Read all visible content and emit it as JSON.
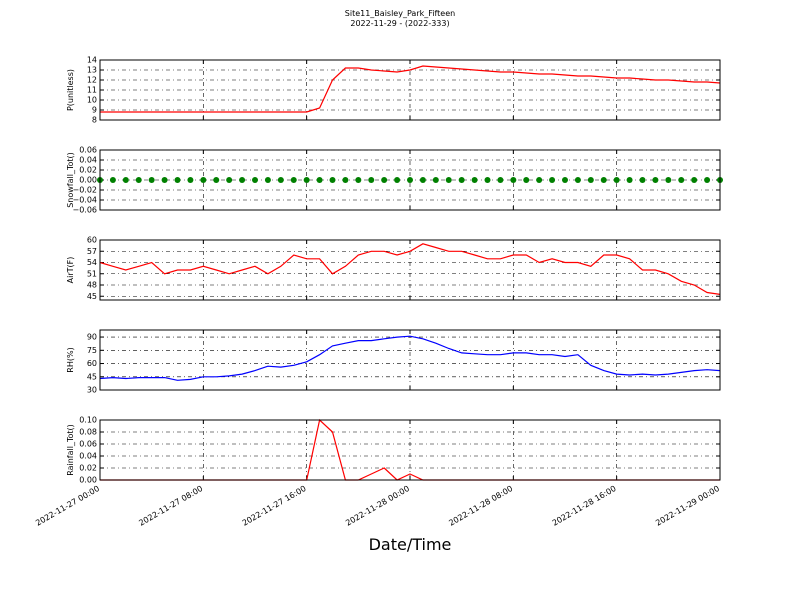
{
  "header": {
    "title": "Site11_Baisley_Park_Fifteen",
    "subtitle": "2022-11-29 - (2022-333)"
  },
  "chart_data": [
    {
      "type": "line",
      "ylabel": "P(unitless)",
      "xlim": [
        "2022-11-27 00:00",
        "2022-11-29 00:00"
      ],
      "xticks": [
        "2022-11-27 00:00",
        "2022-11-27 08:00",
        "2022-11-27 16:00",
        "2022-11-28 00:00",
        "2022-11-28 08:00",
        "2022-11-28 16:00",
        "2022-11-29 00:00"
      ],
      "ylim": [
        8,
        14
      ],
      "yticks": [
        8,
        9,
        10,
        11,
        12,
        13,
        14
      ],
      "grid": true,
      "x": [
        "2022-11-27 00:00",
        "2022-11-27 01:00",
        "2022-11-27 02:00",
        "2022-11-27 03:00",
        "2022-11-27 04:00",
        "2022-11-27 05:00",
        "2022-11-27 06:00",
        "2022-11-27 07:00",
        "2022-11-27 08:00",
        "2022-11-27 09:00",
        "2022-11-27 10:00",
        "2022-11-27 11:00",
        "2022-11-27 12:00",
        "2022-11-27 13:00",
        "2022-11-27 14:00",
        "2022-11-27 15:00",
        "2022-11-27 16:00",
        "2022-11-27 17:00",
        "2022-11-27 18:00",
        "2022-11-27 19:00",
        "2022-11-27 20:00",
        "2022-11-27 21:00",
        "2022-11-27 22:00",
        "2022-11-27 23:00",
        "2022-11-28 00:00",
        "2022-11-28 01:00",
        "2022-11-28 02:00",
        "2022-11-28 03:00",
        "2022-11-28 04:00",
        "2022-11-28 05:00",
        "2022-11-28 06:00",
        "2022-11-28 07:00",
        "2022-11-28 08:00",
        "2022-11-28 09:00",
        "2022-11-28 10:00",
        "2022-11-28 11:00",
        "2022-11-28 12:00",
        "2022-11-28 13:00",
        "2022-11-28 14:00",
        "2022-11-28 15:00",
        "2022-11-28 16:00",
        "2022-11-28 17:00",
        "2022-11-28 18:00",
        "2022-11-28 19:00",
        "2022-11-28 20:00",
        "2022-11-28 21:00",
        "2022-11-28 22:00",
        "2022-11-28 23:00",
        "2022-11-29 00:00"
      ],
      "series": [
        {
          "color": "#ff0000",
          "values": [
            8.8,
            8.8,
            8.8,
            8.8,
            8.8,
            8.8,
            8.8,
            8.8,
            8.8,
            8.8,
            8.8,
            8.8,
            8.8,
            8.8,
            8.8,
            8.8,
            8.8,
            9.2,
            12.0,
            13.2,
            13.2,
            13.0,
            12.9,
            12.8,
            13.0,
            13.4,
            13.3,
            13.2,
            13.1,
            13.0,
            12.9,
            12.8,
            12.8,
            12.7,
            12.6,
            12.6,
            12.5,
            12.4,
            12.4,
            12.3,
            12.2,
            12.2,
            12.1,
            12.0,
            12.0,
            11.9,
            11.8,
            11.8,
            11.7
          ]
        }
      ]
    },
    {
      "type": "scatter",
      "ylabel": "Snowfall_Tot()",
      "xlim": [
        "2022-11-27 00:00",
        "2022-11-29 00:00"
      ],
      "xticks": [
        "2022-11-27 00:00",
        "2022-11-27 08:00",
        "2022-11-27 16:00",
        "2022-11-28 00:00",
        "2022-11-28 08:00",
        "2022-11-28 16:00",
        "2022-11-29 00:00"
      ],
      "ylim": [
        -0.06,
        0.06
      ],
      "yticks": [
        {
          "value": -0.06,
          "label": "−0.06"
        },
        {
          "value": -0.04,
          "label": "−0.04"
        },
        {
          "value": -0.02,
          "label": "−0.02"
        },
        {
          "value": 0,
          "label": "0.00"
        },
        {
          "value": 0.02,
          "label": "0.02"
        },
        {
          "value": 0.04,
          "label": "0.04"
        },
        {
          "value": 0.06,
          "label": "0.06"
        }
      ],
      "grid": true,
      "x": [
        "2022-11-27 00:00",
        "2022-11-27 01:00",
        "2022-11-27 02:00",
        "2022-11-27 03:00",
        "2022-11-27 04:00",
        "2022-11-27 05:00",
        "2022-11-27 06:00",
        "2022-11-27 07:00",
        "2022-11-27 08:00",
        "2022-11-27 09:00",
        "2022-11-27 10:00",
        "2022-11-27 11:00",
        "2022-11-27 12:00",
        "2022-11-27 13:00",
        "2022-11-27 14:00",
        "2022-11-27 15:00",
        "2022-11-27 16:00",
        "2022-11-27 17:00",
        "2022-11-27 18:00",
        "2022-11-27 19:00",
        "2022-11-27 20:00",
        "2022-11-27 21:00",
        "2022-11-27 22:00",
        "2022-11-27 23:00",
        "2022-11-28 00:00",
        "2022-11-28 01:00",
        "2022-11-28 02:00",
        "2022-11-28 03:00",
        "2022-11-28 04:00",
        "2022-11-28 05:00",
        "2022-11-28 06:00",
        "2022-11-28 07:00",
        "2022-11-28 08:00",
        "2022-11-28 09:00",
        "2022-11-28 10:00",
        "2022-11-28 11:00",
        "2022-11-28 12:00",
        "2022-11-28 13:00",
        "2022-11-28 14:00",
        "2022-11-28 15:00",
        "2022-11-28 16:00",
        "2022-11-28 17:00",
        "2022-11-28 18:00",
        "2022-11-28 19:00",
        "2022-11-28 20:00",
        "2022-11-28 21:00",
        "2022-11-28 22:00",
        "2022-11-28 23:00",
        "2022-11-29 00:00"
      ],
      "series": [
        {
          "color": "#008000",
          "values": [
            0,
            0,
            0,
            0,
            0,
            0,
            0,
            0,
            0,
            0,
            0,
            0,
            0,
            0,
            0,
            0,
            0,
            0,
            0,
            0,
            0,
            0,
            0,
            0,
            0,
            0,
            0,
            0,
            0,
            0,
            0,
            0,
            0,
            0,
            0,
            0,
            0,
            0,
            0,
            0,
            0,
            0,
            0,
            0,
            0,
            0,
            0,
            0,
            0
          ]
        }
      ]
    },
    {
      "type": "line",
      "ylabel": "AirT(F)",
      "xlim": [
        "2022-11-27 00:00",
        "2022-11-29 00:00"
      ],
      "xticks": [
        "2022-11-27 00:00",
        "2022-11-27 08:00",
        "2022-11-27 16:00",
        "2022-11-28 00:00",
        "2022-11-28 08:00",
        "2022-11-28 16:00",
        "2022-11-29 00:00"
      ],
      "ylim": [
        44,
        60
      ],
      "yticks": [
        45,
        48,
        51,
        54,
        57,
        60
      ],
      "grid": true,
      "x": [
        "2022-11-27 00:00",
        "2022-11-27 01:00",
        "2022-11-27 02:00",
        "2022-11-27 03:00",
        "2022-11-27 04:00",
        "2022-11-27 05:00",
        "2022-11-27 06:00",
        "2022-11-27 07:00",
        "2022-11-27 08:00",
        "2022-11-27 09:00",
        "2022-11-27 10:00",
        "2022-11-27 11:00",
        "2022-11-27 12:00",
        "2022-11-27 13:00",
        "2022-11-27 14:00",
        "2022-11-27 15:00",
        "2022-11-27 16:00",
        "2022-11-27 17:00",
        "2022-11-27 18:00",
        "2022-11-27 19:00",
        "2022-11-27 20:00",
        "2022-11-27 21:00",
        "2022-11-27 22:00",
        "2022-11-27 23:00",
        "2022-11-28 00:00",
        "2022-11-28 01:00",
        "2022-11-28 02:00",
        "2022-11-28 03:00",
        "2022-11-28 04:00",
        "2022-11-28 05:00",
        "2022-11-28 06:00",
        "2022-11-28 07:00",
        "2022-11-28 08:00",
        "2022-11-28 09:00",
        "2022-11-28 10:00",
        "2022-11-28 11:00",
        "2022-11-28 12:00",
        "2022-11-28 13:00",
        "2022-11-28 14:00",
        "2022-11-28 15:00",
        "2022-11-28 16:00",
        "2022-11-28 17:00",
        "2022-11-28 18:00",
        "2022-11-28 19:00",
        "2022-11-28 20:00",
        "2022-11-28 21:00",
        "2022-11-28 22:00",
        "2022-11-28 23:00",
        "2022-11-29 00:00"
      ],
      "series": [
        {
          "color": "#ff0000",
          "values": [
            54,
            53,
            52,
            53,
            54,
            51,
            52,
            52,
            53,
            52,
            51,
            52,
            53,
            51,
            53,
            56,
            55,
            55,
            51,
            53,
            56,
            57,
            57,
            56,
            57,
            59,
            58,
            57,
            57,
            56,
            55,
            55,
            56,
            56,
            54,
            55,
            54,
            54,
            53,
            56,
            56,
            55,
            52,
            52,
            51,
            49,
            48,
            46,
            45.5
          ]
        }
      ]
    },
    {
      "type": "line",
      "ylabel": "RH(%)",
      "xlim": [
        "2022-11-27 00:00",
        "2022-11-29 00:00"
      ],
      "xticks": [
        "2022-11-27 00:00",
        "2022-11-27 08:00",
        "2022-11-27 16:00",
        "2022-11-28 00:00",
        "2022-11-28 08:00",
        "2022-11-28 16:00",
        "2022-11-29 00:00"
      ],
      "ylim": [
        30,
        98
      ],
      "yticks": [
        30,
        45,
        60,
        75,
        90
      ],
      "grid": true,
      "x": [
        "2022-11-27 00:00",
        "2022-11-27 01:00",
        "2022-11-27 02:00",
        "2022-11-27 03:00",
        "2022-11-27 04:00",
        "2022-11-27 05:00",
        "2022-11-27 06:00",
        "2022-11-27 07:00",
        "2022-11-27 08:00",
        "2022-11-27 09:00",
        "2022-11-27 10:00",
        "2022-11-27 11:00",
        "2022-11-27 12:00",
        "2022-11-27 13:00",
        "2022-11-27 14:00",
        "2022-11-27 15:00",
        "2022-11-27 16:00",
        "2022-11-27 17:00",
        "2022-11-27 18:00",
        "2022-11-27 19:00",
        "2022-11-27 20:00",
        "2022-11-27 21:00",
        "2022-11-27 22:00",
        "2022-11-27 23:00",
        "2022-11-28 00:00",
        "2022-11-28 01:00",
        "2022-11-28 02:00",
        "2022-11-28 03:00",
        "2022-11-28 04:00",
        "2022-11-28 05:00",
        "2022-11-28 06:00",
        "2022-11-28 07:00",
        "2022-11-28 08:00",
        "2022-11-28 09:00",
        "2022-11-28 10:00",
        "2022-11-28 11:00",
        "2022-11-28 12:00",
        "2022-11-28 13:00",
        "2022-11-28 14:00",
        "2022-11-28 15:00",
        "2022-11-28 16:00",
        "2022-11-28 17:00",
        "2022-11-28 18:00",
        "2022-11-28 19:00",
        "2022-11-28 20:00",
        "2022-11-28 21:00",
        "2022-11-28 22:00",
        "2022-11-28 23:00",
        "2022-11-29 00:00"
      ],
      "series": [
        {
          "color": "#0000ff",
          "values": [
            43,
            44,
            43,
            44,
            44,
            44,
            41,
            42,
            45,
            45,
            46,
            48,
            52,
            57,
            56,
            58,
            62,
            70,
            80,
            83,
            86,
            86,
            88,
            90,
            91,
            88,
            83,
            77,
            72,
            71,
            70,
            70,
            72,
            72,
            70,
            70,
            68,
            70,
            58,
            52,
            48,
            47,
            48,
            47,
            48,
            50,
            52,
            53,
            52
          ]
        }
      ]
    },
    {
      "type": "line",
      "ylabel": "Rainfall_Tot()",
      "xlabel": "Date/Time",
      "xlim": [
        "2022-11-27 00:00",
        "2022-11-29 00:00"
      ],
      "xticks": [
        "2022-11-27 00:00",
        "2022-11-27 08:00",
        "2022-11-27 16:00",
        "2022-11-28 00:00",
        "2022-11-28 08:00",
        "2022-11-28 16:00",
        "2022-11-29 00:00"
      ],
      "ylim": [
        0,
        0.1
      ],
      "yticks": [
        {
          "value": 0,
          "label": "0.00"
        },
        {
          "value": 0.02,
          "label": "0.02"
        },
        {
          "value": 0.04,
          "label": "0.04"
        },
        {
          "value": 0.06,
          "label": "0.06"
        },
        {
          "value": 0.08,
          "label": "0.08"
        },
        {
          "value": 0.1,
          "label": "0.10"
        }
      ],
      "grid": true,
      "x": [
        "2022-11-27 00:00",
        "2022-11-27 01:00",
        "2022-11-27 02:00",
        "2022-11-27 03:00",
        "2022-11-27 04:00",
        "2022-11-27 05:00",
        "2022-11-27 06:00",
        "2022-11-27 07:00",
        "2022-11-27 08:00",
        "2022-11-27 09:00",
        "2022-11-27 10:00",
        "2022-11-27 11:00",
        "2022-11-27 12:00",
        "2022-11-27 13:00",
        "2022-11-27 14:00",
        "2022-11-27 15:00",
        "2022-11-27 16:00",
        "2022-11-27 17:00",
        "2022-11-27 18:00",
        "2022-11-27 19:00",
        "2022-11-27 20:00",
        "2022-11-27 21:00",
        "2022-11-27 22:00",
        "2022-11-27 23:00",
        "2022-11-28 00:00",
        "2022-11-28 01:00",
        "2022-11-28 02:00",
        "2022-11-28 03:00",
        "2022-11-28 04:00",
        "2022-11-28 05:00",
        "2022-11-28 06:00",
        "2022-11-28 07:00",
        "2022-11-28 08:00",
        "2022-11-28 09:00",
        "2022-11-28 10:00",
        "2022-11-28 11:00",
        "2022-11-28 12:00",
        "2022-11-28 13:00",
        "2022-11-28 14:00",
        "2022-11-28 15:00",
        "2022-11-28 16:00",
        "2022-11-28 17:00",
        "2022-11-28 18:00",
        "2022-11-28 19:00",
        "2022-11-28 20:00",
        "2022-11-28 21:00",
        "2022-11-28 22:00",
        "2022-11-28 23:00",
        "2022-11-29 00:00"
      ],
      "series": [
        {
          "color": "#ff0000",
          "values": [
            0,
            0,
            0,
            0,
            0,
            0,
            0,
            0,
            0,
            0,
            0,
            0,
            0,
            0,
            0,
            0,
            0,
            0.1,
            0.08,
            0,
            0,
            0.01,
            0.02,
            0,
            0.01,
            0,
            0,
            0,
            0,
            0,
            0,
            0,
            0,
            0,
            0,
            0,
            0,
            0,
            0,
            0,
            0,
            0,
            0,
            0,
            0,
            0,
            0,
            0,
            0
          ]
        }
      ]
    }
  ]
}
